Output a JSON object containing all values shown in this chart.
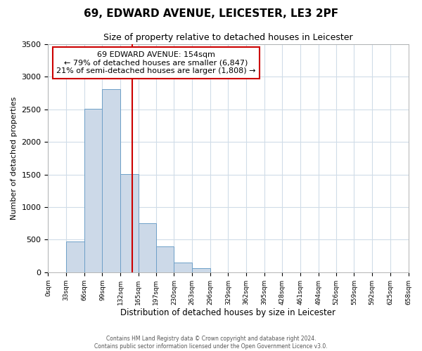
{
  "title": "69, EDWARD AVENUE, LEICESTER, LE3 2PF",
  "subtitle": "Size of property relative to detached houses in Leicester",
  "xlabel": "Distribution of detached houses by size in Leicester",
  "ylabel": "Number of detached properties",
  "annotation_line1": "69 EDWARD AVENUE: 154sqm",
  "annotation_line2": "← 79% of detached houses are smaller (6,847)",
  "annotation_line3": "21% of semi-detached houses are larger (1,808) →",
  "bar_color": "#ccd9e8",
  "bar_edge_color": "#6ea0c8",
  "vline_color": "#cc0000",
  "vline_x": 154,
  "bin_edges": [
    0,
    33,
    66,
    99,
    132,
    165,
    197,
    230,
    263,
    296,
    329,
    362,
    395,
    428,
    461,
    494,
    526,
    559,
    592,
    625,
    658
  ],
  "bin_counts": [
    0,
    475,
    2510,
    2810,
    1510,
    750,
    400,
    150,
    60,
    0,
    0,
    0,
    0,
    0,
    0,
    0,
    0,
    0,
    0,
    0
  ],
  "ylim": [
    0,
    3500
  ],
  "yticks": [
    0,
    500,
    1000,
    1500,
    2000,
    2500,
    3000,
    3500
  ],
  "tick_labels": [
    "0sqm",
    "33sqm",
    "66sqm",
    "99sqm",
    "132sqm",
    "165sqm",
    "197sqm",
    "230sqm",
    "263sqm",
    "296sqm",
    "329sqm",
    "362sqm",
    "395sqm",
    "428sqm",
    "461sqm",
    "494sqm",
    "526sqm",
    "559sqm",
    "592sqm",
    "625sqm",
    "658sqm"
  ],
  "footer_line1": "Contains HM Land Registry data © Crown copyright and database right 2024.",
  "footer_line2": "Contains public sector information licensed under the Open Government Licence v3.0.",
  "bg_color": "#ffffff",
  "grid_color": "#d0dce8",
  "annotation_box_color": "#ffffff",
  "annotation_box_edge": "#cc0000",
  "title_fontsize": 11,
  "subtitle_fontsize": 9,
  "ylabel_fontsize": 8,
  "xlabel_fontsize": 8.5,
  "annot_fontsize": 8,
  "footer_fontsize": 5.5,
  "ytick_fontsize": 8,
  "xtick_fontsize": 6.5
}
